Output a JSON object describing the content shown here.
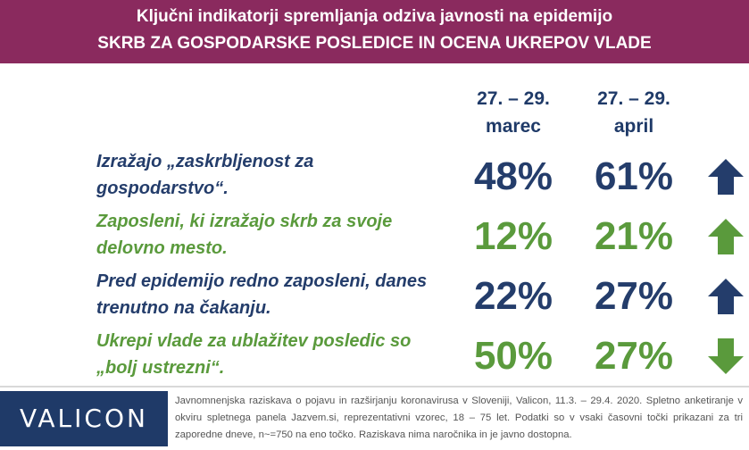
{
  "header": {
    "line1": "Ključni indikatorji spremljanja odziva javnosti na epidemijo",
    "line2": "SKRB ZA GOSPODARSKE POSLEDICE IN OCENA UKREPOV VLADE"
  },
  "columns": [
    {
      "line1": "27. – 29.",
      "line2": "marec"
    },
    {
      "line1": "27. – 29.",
      "line2": "april"
    }
  ],
  "rows": [
    {
      "line1": "Izražajo „zaskrbljenost za",
      "line2": "gospodarstvo“.",
      "march": "48%",
      "april": "61%",
      "trend": "up",
      "color": "#243d6b"
    },
    {
      "line1": "Zaposleni, ki izražajo skrb za svoje",
      "line2": "delovno mesto.",
      "march": "12%",
      "april": "21%",
      "trend": "up",
      "color": "#5a9a3c"
    },
    {
      "line1": "Pred epidemijo redno zaposleni, danes",
      "line2": "trenutno na čakanju.",
      "march": "22%",
      "april": "27%",
      "trend": "up",
      "color": "#243d6b"
    },
    {
      "line1": "Ukrepi vlade za ublažitev posledic so",
      "line2": "„bolj ustrezni“.",
      "march": "50%",
      "april": "27%",
      "trend": "down",
      "color": "#5a9a3c"
    }
  ],
  "footer": {
    "logo": "VALICON",
    "note": "Javnomnenjska raziskava o pojavu in razširjanju koronavirusa v Sloveniji, Valicon, 11.3. – 29.4. 2020. Spletno anketiranje v okviru spletnega panela Jazvem.si, reprezentativni vzorec, 18 – 75 let. Podatki so v vsaki časovni točki prikazani za tri zaporedne dneve, n~=750 na eno točko. Raziskava nima naročnika in je javno dostopna."
  }
}
